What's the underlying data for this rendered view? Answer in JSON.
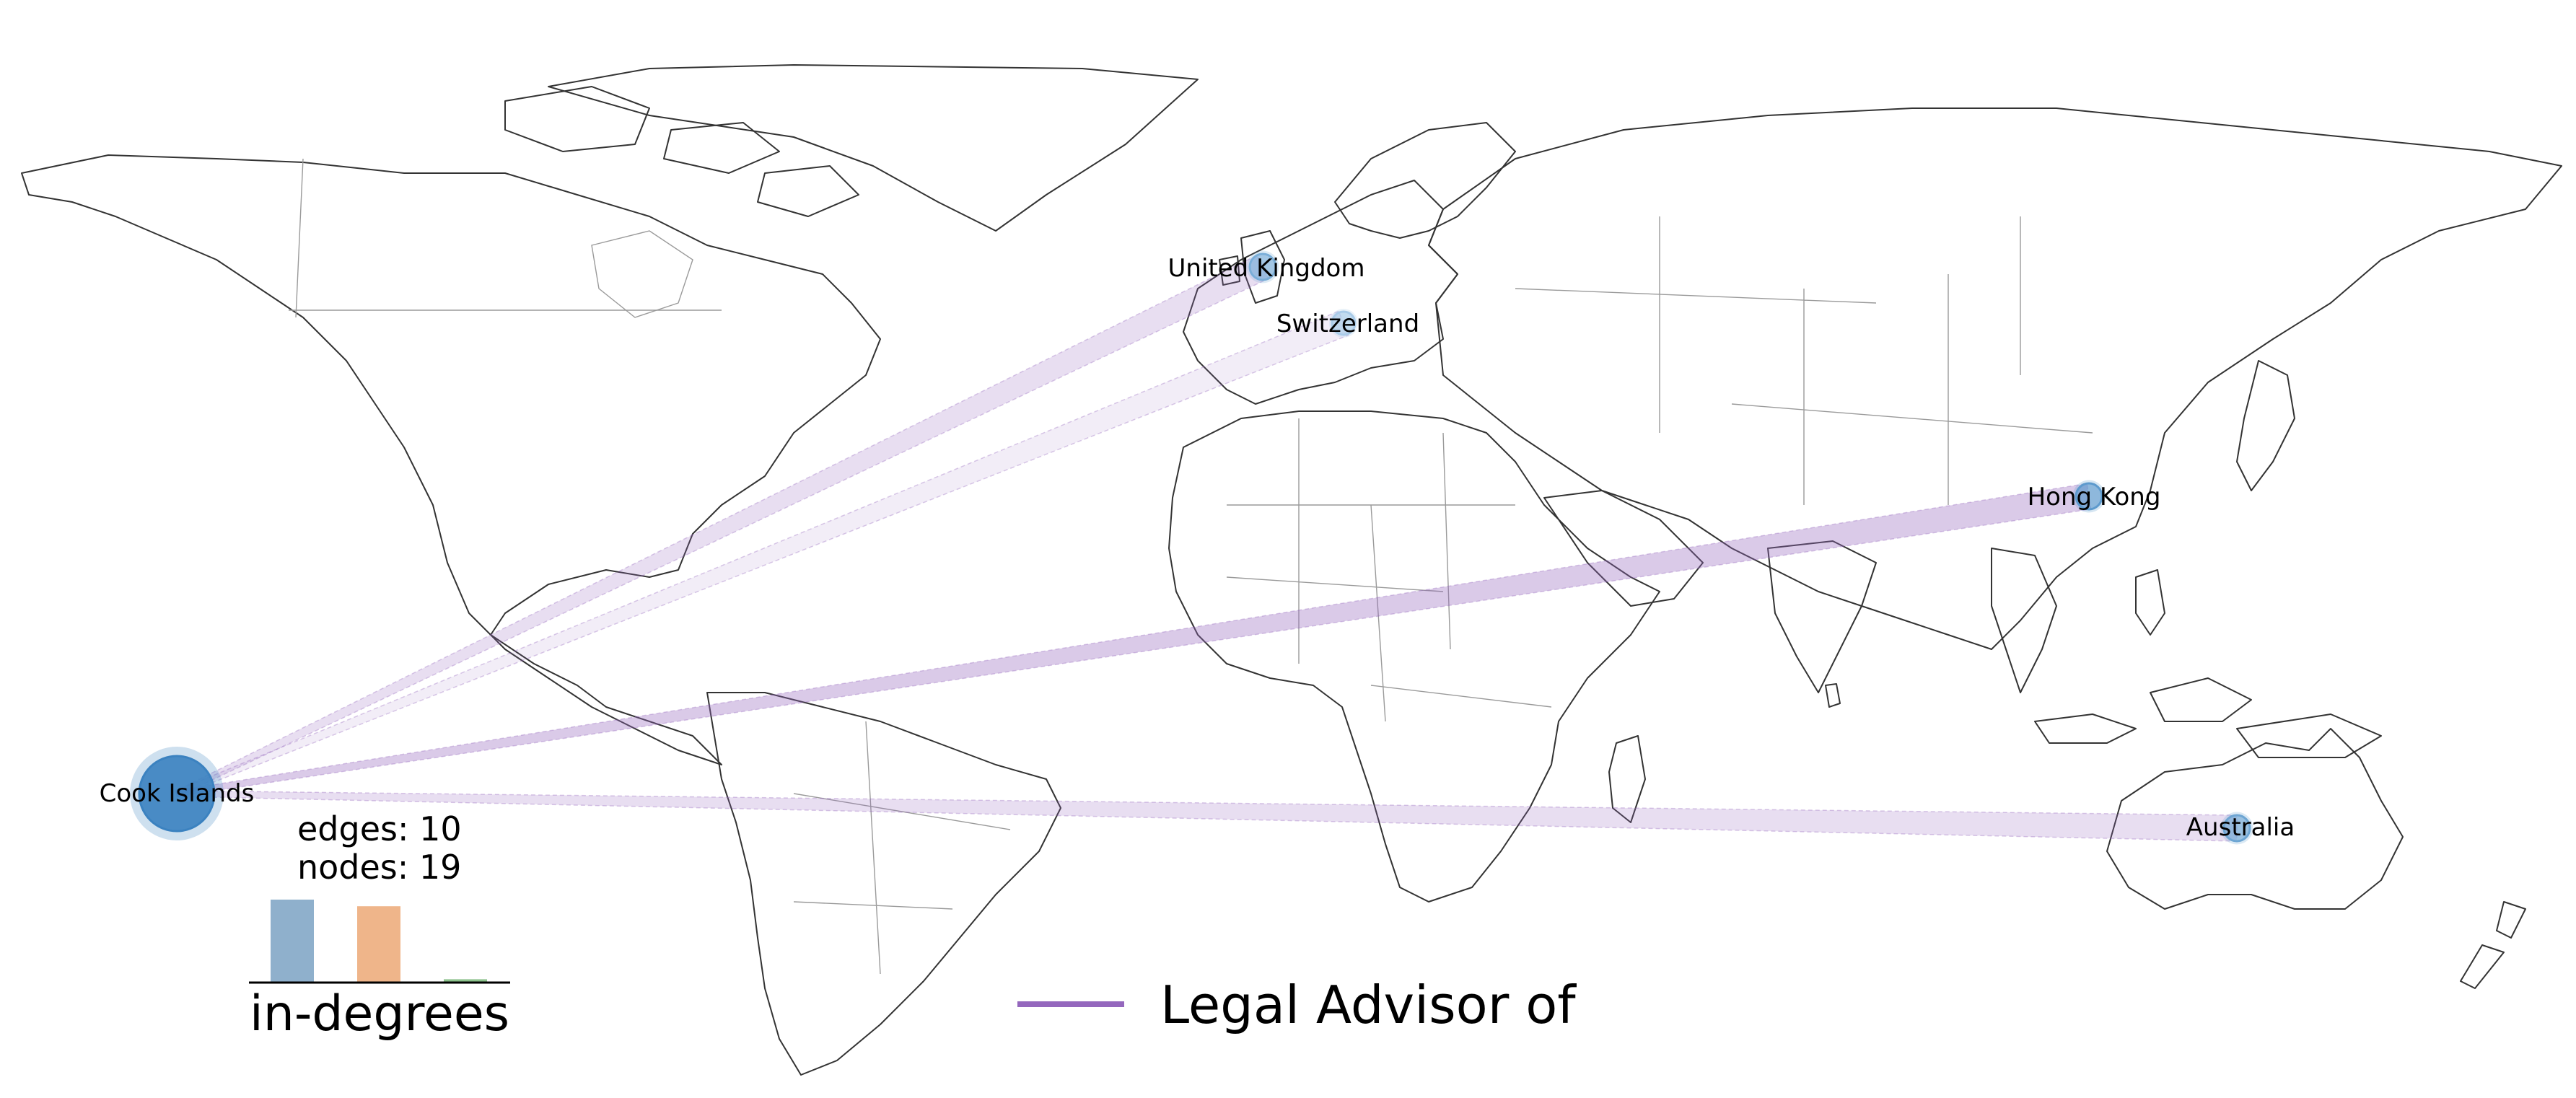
{
  "map": {
    "nodes": [
      {
        "id": "cook",
        "label": "Cook Islands",
        "role": "source",
        "color": "#3b82c0"
      },
      {
        "id": "uk",
        "label": "United Kingdom",
        "role": "target",
        "color": "#7aaed8"
      },
      {
        "id": "ch",
        "label": "Switzerland",
        "role": "target",
        "color": "#a9cbe8"
      },
      {
        "id": "hk",
        "label": "Hong Kong",
        "role": "target",
        "color": "#5d9acd"
      },
      {
        "id": "au",
        "label": "Australia",
        "role": "target",
        "color": "#6ea6d3"
      }
    ],
    "edges": [
      {
        "from": "cook",
        "to": "uk"
      },
      {
        "from": "cook",
        "to": "ch"
      },
      {
        "from": "cook",
        "to": "hk"
      },
      {
        "from": "cook",
        "to": "au"
      }
    ],
    "edge_color": "#9467bd"
  },
  "stats": {
    "edges_text": "edges: 10",
    "nodes_text": "nodes: 19"
  },
  "histogram": {
    "title": "in-degrees",
    "bars": [
      {
        "value": 1.0,
        "color": "#8fb0cc"
      },
      {
        "value": 0.92,
        "color": "#efb58a"
      },
      {
        "value": 0.04,
        "color": "#8cc28c"
      }
    ]
  },
  "legend": {
    "label": "Legal Advisor of",
    "color": "#9467bd"
  }
}
